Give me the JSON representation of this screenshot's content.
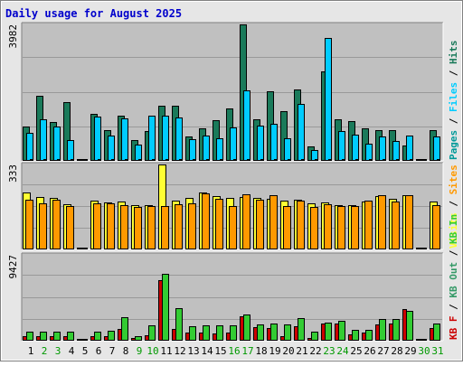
{
  "title": "Daily usage for August 2025",
  "colors": {
    "background": "#e6e6e6",
    "plot_bg": "#c0c0c0",
    "title": "#0000cc",
    "hits": "#1a7a5a",
    "files": "#00ccff",
    "pages": "#009999",
    "visits": "#ffff33",
    "sites": "#ff9900",
    "kb_in": "#33cc33",
    "kb_out": "#339966",
    "kb_f": "#cc0000",
    "weekend_day": "#009900",
    "weekday_day": "#000000"
  },
  "chart_data": [
    {
      "type": "bar",
      "name": "hits-files-pages",
      "max_label": "3982",
      "ylim": [
        0,
        3982
      ],
      "legend": [
        "Pages",
        "/",
        "Files",
        "/",
        "Hits"
      ],
      "series": [
        {
          "name": "Hits",
          "values": [
            1011,
            1910,
            1125,
            1711,
            0,
            1370,
            889,
            1328,
            610,
            870,
            1620,
            1620,
            710,
            955,
            1185,
            1540,
            3982,
            1225,
            2025,
            1450,
            2085,
            430,
            2615,
            1215,
            1165,
            945,
            895,
            890,
            460,
            0,
            890
          ]
        },
        {
          "name": "Files",
          "values": [
            810,
            1210,
            990,
            610,
            0,
            1290,
            750,
            1250,
            470,
            1320,
            1320,
            1260,
            620,
            740,
            650,
            980,
            2050,
            1020,
            1090,
            650,
            1665,
            310,
            3590,
            860,
            760,
            490,
            715,
            590,
            750,
            0,
            720
          ]
        },
        {
          "name": "Pages",
          "values": [
            10,
            10,
            10,
            10,
            0,
            10,
            10,
            10,
            10,
            10,
            10,
            10,
            10,
            10,
            10,
            10,
            10,
            10,
            10,
            10,
            10,
            10,
            10,
            10,
            10,
            10,
            10,
            10,
            10,
            0,
            10
          ]
        }
      ]
    },
    {
      "type": "bar",
      "name": "visits-sites",
      "max_label": "333",
      "ylim": [
        0,
        333
      ],
      "legend": [
        "Visits",
        "/",
        "Sites"
      ],
      "series": [
        {
          "name": "Visits",
          "values": [
            222,
            204,
            201,
            177,
            0,
            192,
            185,
            189,
            172,
            172,
            333,
            193,
            203,
            224,
            210,
            202,
            204,
            203,
            199,
            191,
            196,
            179,
            185,
            174,
            174,
            187,
            210,
            197,
            212,
            0,
            186
          ]
        },
        {
          "name": "Sites",
          "values": [
            196,
            181,
            196,
            169,
            0,
            180,
            181,
            175,
            165,
            169,
            170,
            178,
            182,
            218,
            198,
            169,
            215,
            196,
            213,
            170,
            192,
            166,
            177,
            170,
            170,
            191,
            211,
            187,
            213,
            0,
            175
          ]
        }
      ]
    },
    {
      "type": "bar",
      "name": "kbytes",
      "max_label": "9427",
      "ylim": [
        0,
        9427
      ],
      "legend": [
        "KB F",
        "/",
        "KB Out",
        "/",
        "KB In"
      ],
      "series": [
        {
          "name": "KB F",
          "values": [
            500,
            500,
            500,
            500,
            0,
            500,
            500,
            1300,
            250,
            640,
            6600,
            1280,
            900,
            900,
            750,
            900,
            2720,
            1470,
            1350,
            500,
            1600,
            300,
            1900,
            1900,
            720,
            900,
            1800,
            1900,
            3500,
            0,
            1380
          ]
        },
        {
          "name": "KB In",
          "values": [
            1000,
            1000,
            1000,
            1000,
            0,
            1000,
            1100,
            2600,
            500,
            1700,
            7300,
            3600,
            1630,
            1650,
            1650,
            1700,
            2900,
            1830,
            1910,
            1800,
            2450,
            1000,
            1970,
            2200,
            1200,
            1200,
            2400,
            2400,
            3300,
            0,
            1860
          ]
        }
      ]
    }
  ],
  "x_labels": [
    "1",
    "2",
    "3",
    "4",
    "5",
    "6",
    "7",
    "8",
    "9",
    "10",
    "11",
    "12",
    "13",
    "14",
    "15",
    "16",
    "17",
    "18",
    "19",
    "20",
    "21",
    "22",
    "23",
    "24",
    "25",
    "26",
    "27",
    "28",
    "29",
    "30",
    "31"
  ],
  "weekend_days": [
    2,
    3,
    9,
    10,
    16,
    17,
    23,
    24,
    30,
    31
  ]
}
